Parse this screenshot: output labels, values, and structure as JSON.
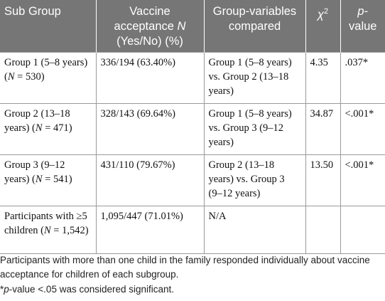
{
  "table": {
    "headers": {
      "sub_group": "Sub Group",
      "acceptance": "Vaccine acceptance",
      "acceptance_var": "N",
      "acceptance_tail": "(Yes/No) (%)",
      "compared": "Group-variables compared",
      "chi_symbol": "χ",
      "chi_sup": "2",
      "p_label": "p",
      "p_tail": "-value"
    },
    "rows": [
      {
        "group_text": "Group 1 (5–8 years) (",
        "n_var": "N",
        "n_value": " = 530)",
        "acceptance": "336/194 (63.40%)",
        "compared": "Group 1 (5–8 years) vs. Group 2 (13–18 years)",
        "chi": "4.35",
        "p": ".037*"
      },
      {
        "group_text": "Group 2 (13–18 years) (",
        "n_var": "N",
        "n_value": " = 471)",
        "acceptance": "328/143 (69.64%)",
        "compared": "Group 1 (5–8 years) vs. Group 3 (9–12 years)",
        "chi": "34.87",
        "p": "<.001*"
      },
      {
        "group_text": "Group 3 (9–12 years) (",
        "n_var": "N",
        "n_value": " = 541)",
        "acceptance": "431/110 (79.67%)",
        "compared": "Group 2 (13–18 years) vs. Group 3 (9–12 years)",
        "chi": "13.50",
        "p": "<.001*"
      },
      {
        "group_text": "Participants with ≥5 children (",
        "n_var": "N",
        "n_value": " = 1,542)",
        "acceptance": "1,095/447 (71.01%)",
        "compared": "N/A",
        "chi": "",
        "p": ""
      }
    ]
  },
  "footnotes": {
    "line1": "Participants with more than one child in the family responded individually about vaccine acceptance for children of each subgroup.",
    "line2_star": "*",
    "line2_var": "p",
    "line2_rest": "-value <.05 was considered significant."
  }
}
